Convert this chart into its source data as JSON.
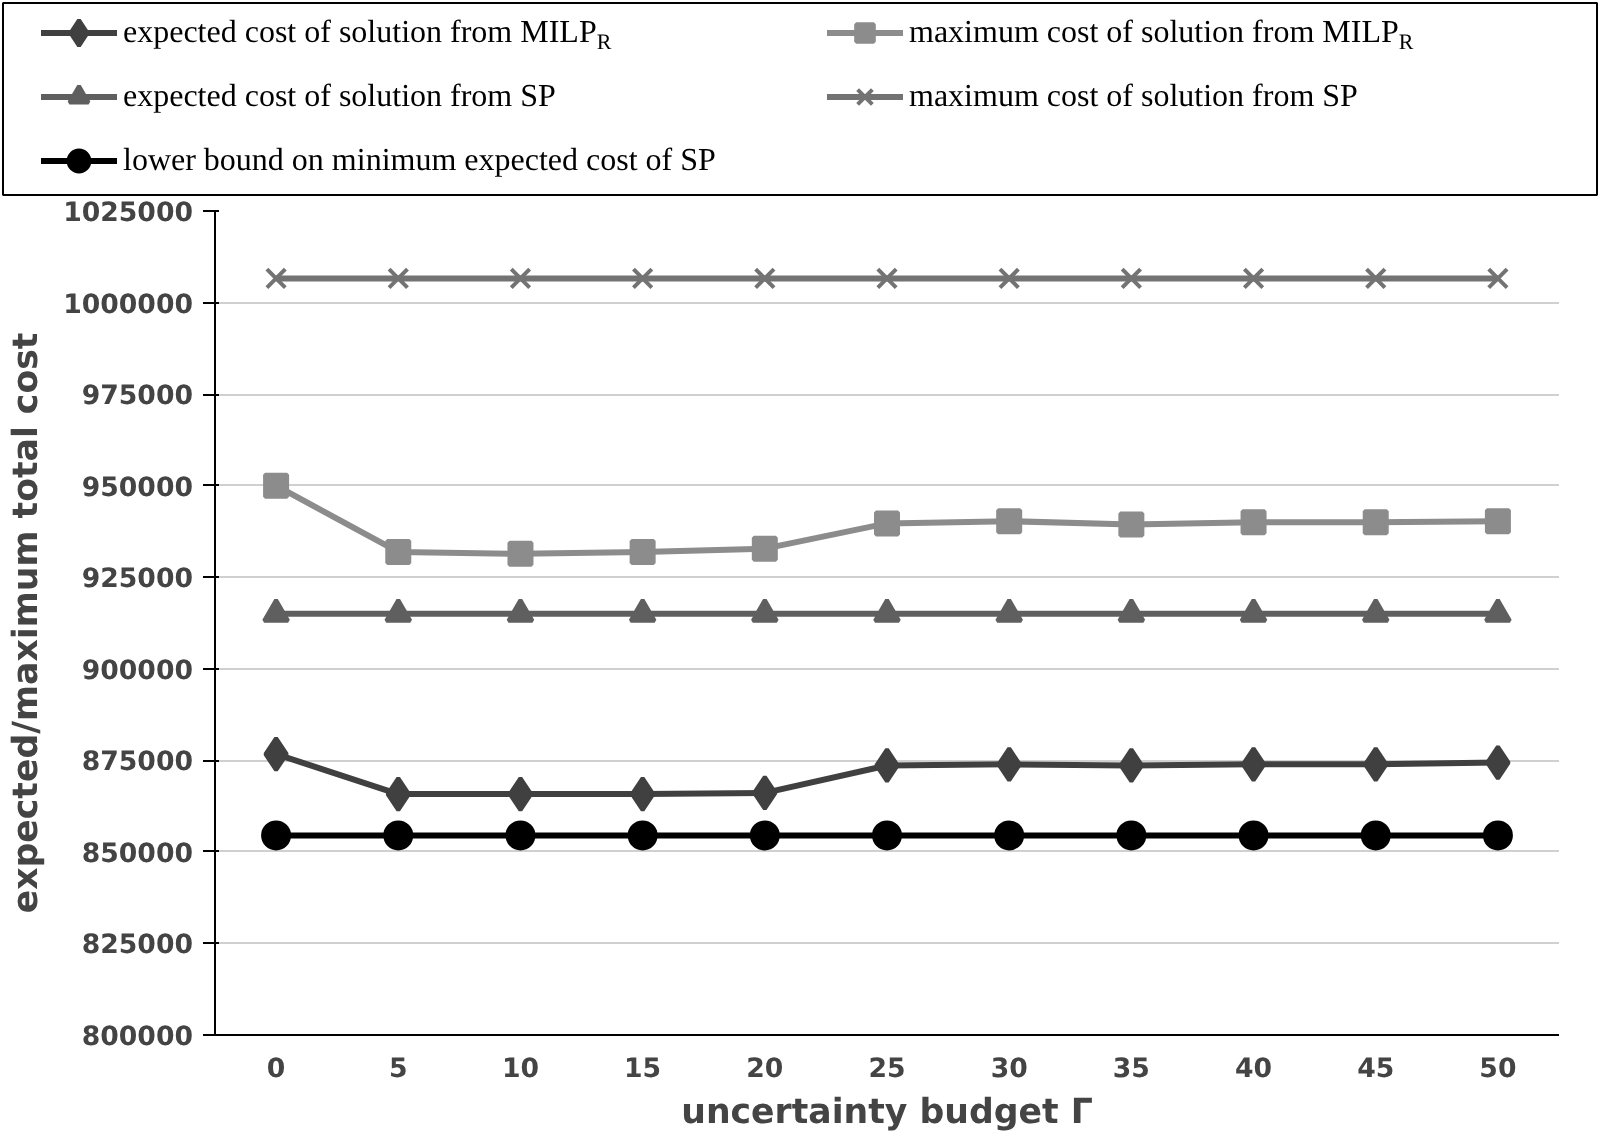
{
  "chart_data": {
    "type": "line",
    "xlabel": "uncertainty budget Γ",
    "ylabel": "expected/maximum total cost",
    "categories": [
      "0",
      "5",
      "10",
      "15",
      "20",
      "25",
      "30",
      "35",
      "40",
      "45",
      "50"
    ],
    "ylim": [
      800000,
      1025000
    ],
    "yticks": [
      800000,
      825000,
      850000,
      875000,
      900000,
      925000,
      950000,
      975000,
      1000000,
      1025000
    ],
    "grid": "y",
    "legend": "top",
    "series": [
      {
        "name": "expected cost of solution from MILP$_{R}$",
        "color": "#404040",
        "marker": "diamond",
        "values": [
          876700,
          865800,
          865800,
          865800,
          866100,
          873600,
          873900,
          873600,
          873900,
          873900,
          874400
        ]
      },
      {
        "name": "maximum cost of solution from MILP$_{R}$",
        "color": "#8c8c8c",
        "marker": "square",
        "values": [
          950000,
          931900,
          931400,
          931900,
          932800,
          939700,
          940300,
          939400,
          940000,
          940000,
          940300
        ]
      },
      {
        "name": "expected cost of solution from SP",
        "color": "#5f5f5f",
        "marker": "triangle",
        "values": [
          915000,
          915000,
          915000,
          915000,
          915000,
          915000,
          915000,
          915000,
          915000,
          915000,
          915000
        ]
      },
      {
        "name": "maximum cost of solution from SP",
        "color": "#737373",
        "marker": "cross",
        "values": [
          1006600,
          1006600,
          1006600,
          1006600,
          1006600,
          1006600,
          1006600,
          1006600,
          1006600,
          1006600,
          1006600
        ]
      },
      {
        "name": "lower bound on minimum expected cost of SP",
        "color": "#000000",
        "marker": "circle",
        "values": [
          854500,
          854500,
          854500,
          854500,
          854500,
          854500,
          854500,
          854500,
          854500,
          854500,
          854500
        ]
      }
    ]
  }
}
